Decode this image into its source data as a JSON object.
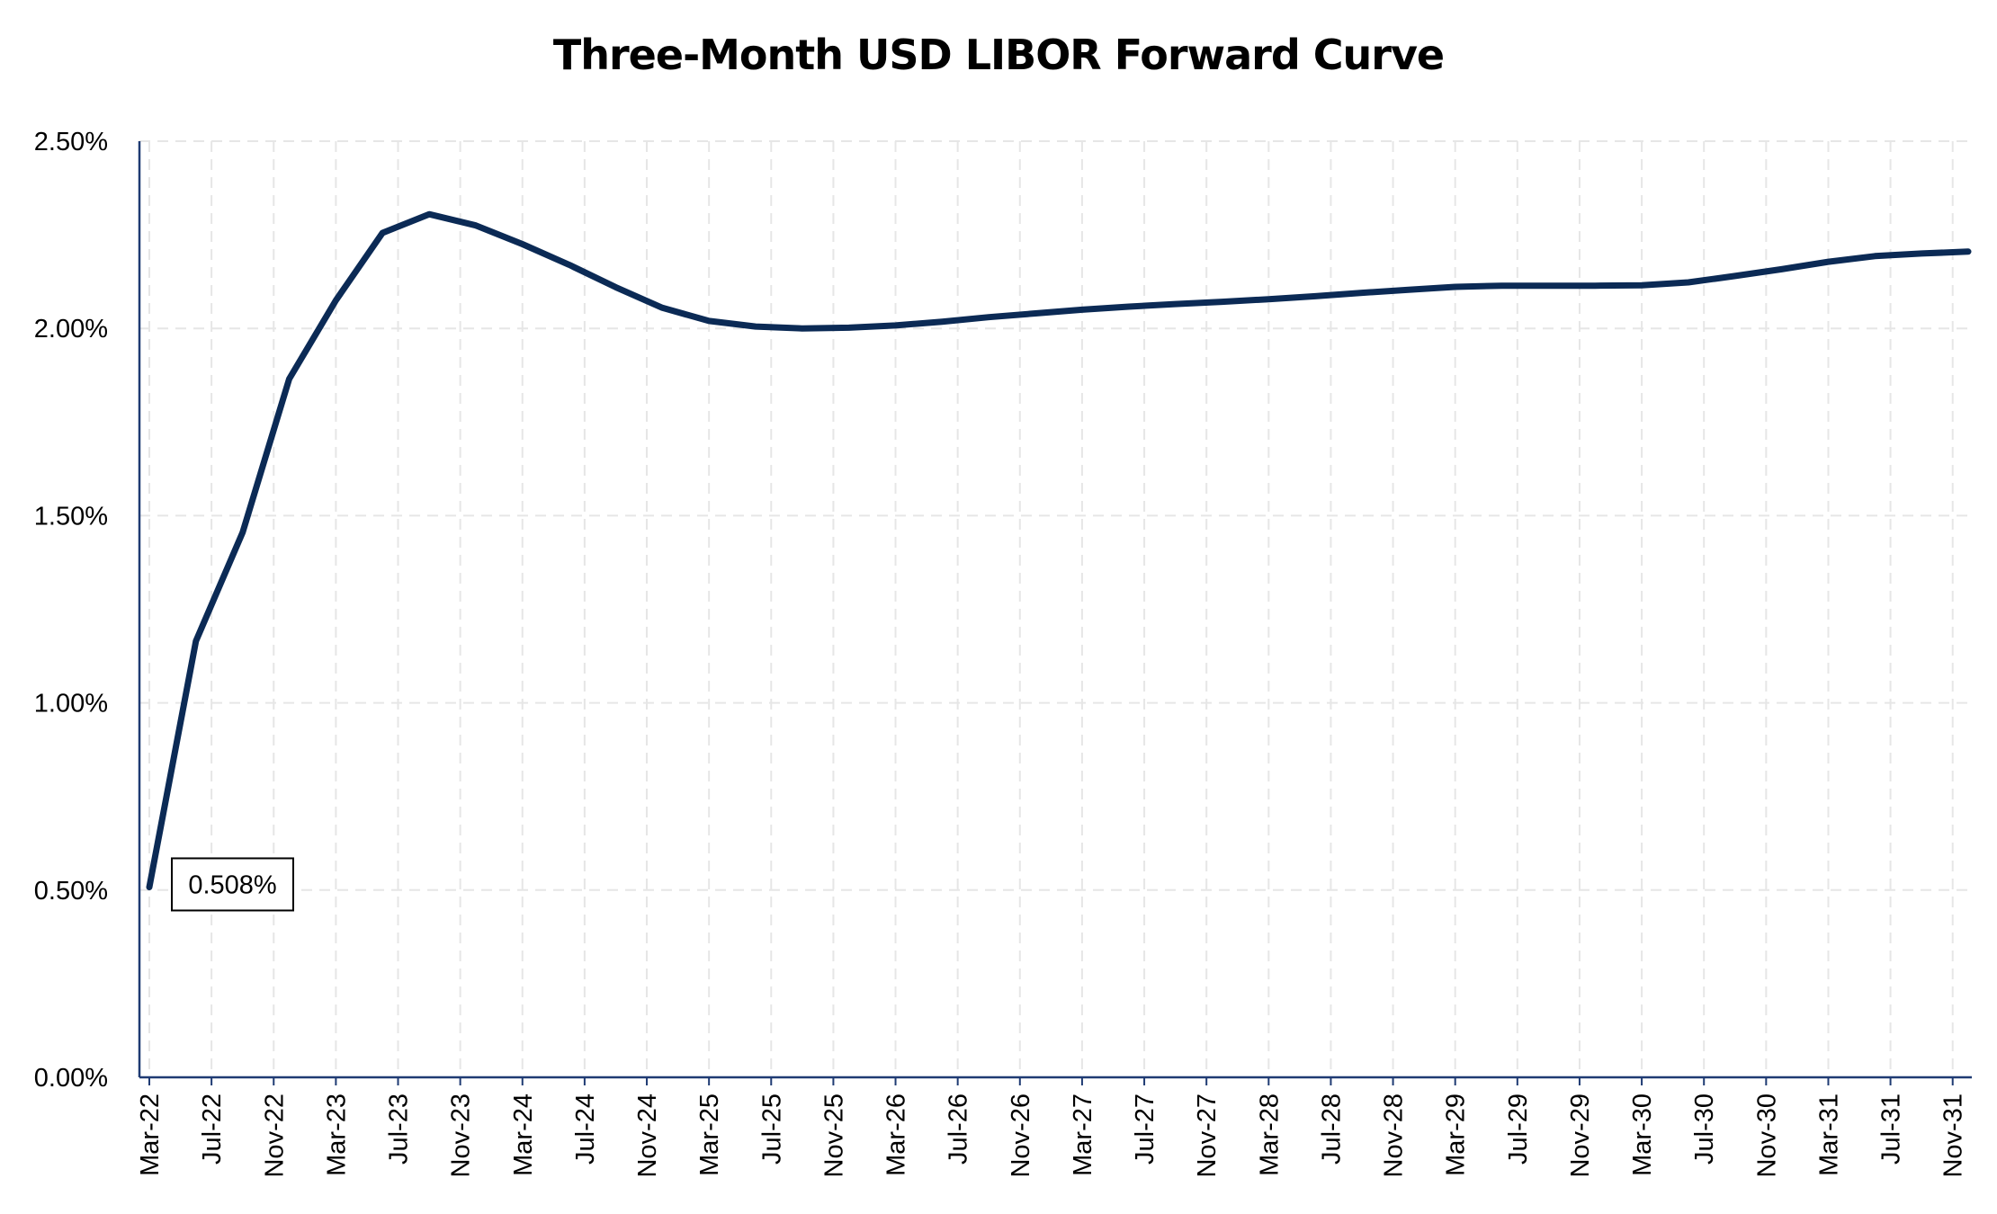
{
  "chart_data": {
    "type": "line",
    "title": "Three-Month USD LIBOR Forward Curve",
    "xlabel": "",
    "ylabel": "",
    "ylim": [
      0,
      2.5
    ],
    "yticks": [
      "0.00%",
      "0.50%",
      "1.00%",
      "1.50%",
      "2.00%",
      "2.50%"
    ],
    "ytick_values": [
      0,
      0.5,
      1.0,
      1.5,
      2.0,
      2.5
    ],
    "grid": "dashed",
    "legend": "none",
    "colors": {
      "line": "#0b2a55",
      "grid": "#e6e6e6",
      "axis": "#1f3b73"
    },
    "xticks": [
      "Mar-22",
      "Jul-22",
      "Nov-22",
      "Mar-23",
      "Jul-23",
      "Nov-23",
      "Mar-24",
      "Jul-24",
      "Nov-24",
      "Mar-25",
      "Jul-25",
      "Nov-25",
      "Mar-26",
      "Jul-26",
      "Nov-26",
      "Mar-27",
      "Jul-27",
      "Nov-27",
      "Mar-28",
      "Jul-28",
      "Nov-28",
      "Mar-29",
      "Jul-29",
      "Nov-29",
      "Mar-30",
      "Jul-30",
      "Nov-30",
      "Mar-31",
      "Jul-31",
      "Nov-31"
    ],
    "series": [
      {
        "x": [
          "Mar-22",
          "Jun-22",
          "Sep-22",
          "Dec-22",
          "Mar-23",
          "Jun-23",
          "Sep-23",
          "Dec-23",
          "Mar-24",
          "Jun-24",
          "Sep-24",
          "Dec-24",
          "Mar-25",
          "Jun-25",
          "Sep-25",
          "Dec-25",
          "Mar-26",
          "Jun-26",
          "Sep-26",
          "Dec-26",
          "Mar-27",
          "Jun-27",
          "Sep-27",
          "Dec-27",
          "Mar-28",
          "Jun-28",
          "Sep-28",
          "Dec-28",
          "Mar-29",
          "Jun-29",
          "Sep-29",
          "Dec-29",
          "Mar-30",
          "Jun-30",
          "Sep-30",
          "Dec-30",
          "Mar-31",
          "Jun-31",
          "Sep-31",
          "Dec-31"
        ],
        "values": [
          0.508,
          1.165,
          1.455,
          1.865,
          2.075,
          2.255,
          2.305,
          2.275,
          2.225,
          2.17,
          2.11,
          2.055,
          2.02,
          2.005,
          2.0,
          2.002,
          2.008,
          2.018,
          2.03,
          2.04,
          2.05,
          2.058,
          2.065,
          2.071,
          2.078,
          2.086,
          2.095,
          2.103,
          2.111,
          2.114,
          2.114,
          2.114,
          2.115,
          2.123,
          2.14,
          2.158,
          2.178,
          2.193,
          2.2,
          2.205
        ]
      }
    ],
    "annotations": [
      {
        "x": "Mar-22",
        "y": 0.508,
        "label": "0.508%"
      }
    ]
  }
}
